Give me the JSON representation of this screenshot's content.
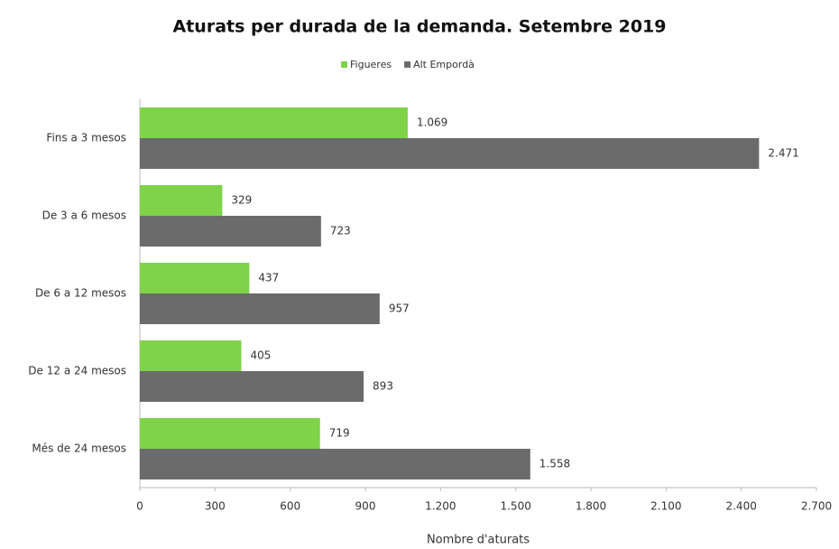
{
  "chart_data": {
    "type": "hbar",
    "title": "Aturats per durada de la demanda. Setembre 2019",
    "x_label": "Nombre d'aturats",
    "categories": [
      "Fins a 3 mesos",
      "De 3 a 6 mesos",
      "De 6 a 12 mesos",
      "De 12 a 24 mesos",
      "Més de 24 mesos"
    ],
    "series": [
      {
        "name": "Figueres",
        "color": "#7ed348",
        "values": [
          1069,
          329,
          437,
          405,
          719
        ],
        "value_labels": [
          "1.069",
          "329",
          "437",
          "405",
          "719"
        ]
      },
      {
        "name": "Alt Empordà",
        "color": "#6b6b6b",
        "values": [
          2471,
          723,
          957,
          893,
          1558
        ],
        "value_labels": [
          "2.471",
          "723",
          "957",
          "893",
          "1.558"
        ]
      }
    ],
    "xlim": [
      0,
      2700
    ],
    "xticks": [
      0,
      300,
      600,
      900,
      {
        "value": 1200,
        "label": "1.200"
      },
      {
        "value": 1500,
        "label": "1.500"
      },
      {
        "value": 1800,
        "label": "1.800"
      },
      {
        "value": 2100,
        "label": "2.100"
      },
      {
        "value": 2400,
        "label": "2.400"
      },
      {
        "value": 2700,
        "label": "2.700"
      }
    ],
    "legend": "top"
  }
}
